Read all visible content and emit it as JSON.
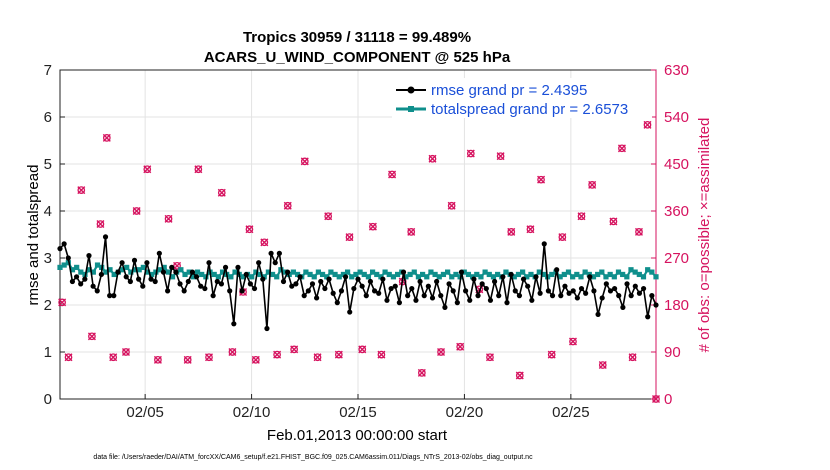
{
  "chart_data": {
    "type": "line",
    "title": "Tropics 30959 / 31118 = 99.489%",
    "subtitle": "ACARS_U_WIND_COMPONENT @ 525 hPa",
    "xlabel": "Feb.01,2013 00:00:00 start",
    "ylabel_left": "rmse and totalspread",
    "ylabel_right": "# of obs: o=possible; ×=assimilated",
    "xlim": [
      1,
      29
    ],
    "ylim_left": [
      0,
      7
    ],
    "ylim_right": [
      0,
      630
    ],
    "x_ticks": [
      5,
      10,
      15,
      20,
      25
    ],
    "x_tick_labels": [
      "02/05",
      "02/10",
      "02/15",
      "02/20",
      "02/25"
    ],
    "y_ticks_left": [
      "0",
      "1",
      "2",
      "3",
      "4",
      "5",
      "6",
      "7"
    ],
    "y_ticks_right": [
      "0",
      "90",
      "180",
      "270",
      "360",
      "450",
      "540",
      "630"
    ],
    "grid": true,
    "legend_position": "top-right",
    "colors": {
      "rmse": "#000000",
      "totalspread": "#0f8f8c",
      "obs": "#d6135f",
      "legend_text": "#1a4fd8"
    },
    "series": [
      {
        "name": "rmse grand pr = 2.4395",
        "axis": "left",
        "values": [
          3.2,
          3.3,
          3.0,
          2.5,
          2.6,
          2.45,
          2.55,
          3.05,
          2.4,
          2.3,
          2.65,
          3.45,
          2.2,
          2.2,
          2.7,
          2.9,
          2.6,
          2.5,
          2.95,
          2.55,
          2.4,
          2.9,
          2.55,
          2.5,
          3.1,
          2.7,
          2.3,
          2.8,
          2.7,
          2.45,
          2.3,
          2.5,
          2.7,
          2.6,
          2.4,
          2.35,
          2.9,
          2.2,
          2.5,
          2.45,
          2.8,
          2.3,
          1.6,
          2.8,
          2.3,
          2.65,
          2.45,
          2.35,
          2.9,
          2.55,
          1.5,
          3.1,
          2.9,
          3.1,
          2.5,
          2.7,
          2.4,
          2.45,
          2.6,
          2.2,
          2.3,
          2.45,
          2.15,
          2.5,
          2.35,
          2.55,
          2.25,
          2.05,
          2.3,
          2.6,
          1.85,
          2.35,
          2.55,
          2.4,
          2.2,
          2.5,
          2.3,
          2.25,
          2.55,
          2.1,
          2.35,
          2.4,
          2.05,
          2.7,
          2.2,
          2.35,
          2.1,
          2.5,
          2.2,
          2.4,
          2.15,
          2.5,
          2.2,
          1.95,
          2.45,
          2.3,
          2.05,
          2.7,
          2.3,
          2.1,
          2.55,
          2.2,
          2.45,
          2.35,
          2.1,
          2.5,
          2.2,
          2.6,
          2.05,
          2.65,
          2.3,
          2.2,
          2.55,
          2.4,
          2.1,
          2.6,
          2.25,
          3.3,
          2.3,
          2.2,
          2.75,
          2.2,
          2.4,
          2.25,
          2.3,
          2.15,
          2.35,
          2.25,
          2.6,
          2.3,
          1.8,
          2.15,
          2.45,
          2.3,
          2.35,
          2.2,
          1.95,
          2.45,
          2.2,
          2.4,
          2.25,
          2.35,
          1.75,
          2.2,
          2.0
        ]
      },
      {
        "name": "totalspread grand pr = 2.6573",
        "axis": "left",
        "values": [
          2.8,
          2.85,
          2.9,
          2.75,
          2.8,
          2.7,
          2.65,
          2.75,
          2.7,
          2.85,
          2.8,
          2.7,
          2.75,
          2.65,
          2.7,
          2.75,
          2.8,
          2.7,
          2.75,
          2.75,
          2.8,
          2.7,
          2.65,
          2.7,
          2.75,
          2.8,
          2.7,
          2.6,
          2.7,
          2.75,
          2.65,
          2.7,
          2.6,
          2.7,
          2.65,
          2.6,
          2.7,
          2.65,
          2.6,
          2.7,
          2.65,
          2.6,
          2.7,
          2.65,
          2.6,
          2.65,
          2.6,
          2.7,
          2.65,
          2.6,
          2.7,
          2.65,
          2.6,
          2.75,
          2.7,
          2.65,
          2.7,
          2.65,
          2.6,
          2.7,
          2.65,
          2.6,
          2.7,
          2.65,
          2.6,
          2.7,
          2.65,
          2.6,
          2.65,
          2.7,
          2.6,
          2.65,
          2.7,
          2.65,
          2.6,
          2.7,
          2.65,
          2.6,
          2.7,
          2.65,
          2.6,
          2.65,
          2.7,
          2.6,
          2.65,
          2.7,
          2.6,
          2.65,
          2.6,
          2.7,
          2.65,
          2.6,
          2.65,
          2.7,
          2.6,
          2.65,
          2.6,
          2.7,
          2.65,
          2.6,
          2.65,
          2.6,
          2.7,
          2.65,
          2.6,
          2.65,
          2.6,
          2.7,
          2.65,
          2.6,
          2.65,
          2.7,
          2.6,
          2.65,
          2.6,
          2.7,
          2.65,
          2.6,
          2.65,
          2.7,
          2.6,
          2.65,
          2.7,
          2.6,
          2.65,
          2.6,
          2.7,
          2.65,
          2.6,
          2.65,
          2.7,
          2.6,
          2.65,
          2.6,
          2.7,
          2.65,
          2.6,
          2.75,
          2.7,
          2.65,
          2.6,
          2.75,
          2.7,
          2.6
        ]
      },
      {
        "name": "obs",
        "axis": "right",
        "markers": "o=possible, x=assimilated",
        "points": [
          [
            1.1,
            185
          ],
          [
            1.4,
            80
          ],
          [
            2.0,
            400
          ],
          [
            2.5,
            120
          ],
          [
            2.9,
            335
          ],
          [
            3.2,
            500
          ],
          [
            3.5,
            80
          ],
          [
            4.1,
            90
          ],
          [
            4.6,
            360
          ],
          [
            5.1,
            440
          ],
          [
            5.6,
            75
          ],
          [
            6.1,
            345
          ],
          [
            6.5,
            255
          ],
          [
            7.0,
            75
          ],
          [
            7.5,
            440
          ],
          [
            8.0,
            80
          ],
          [
            8.6,
            395
          ],
          [
            9.1,
            90
          ],
          [
            9.6,
            205
          ],
          [
            9.9,
            325
          ],
          [
            10.2,
            75
          ],
          [
            10.6,
            300
          ],
          [
            11.2,
            85
          ],
          [
            11.7,
            370
          ],
          [
            12.0,
            95
          ],
          [
            12.5,
            455
          ],
          [
            13.1,
            80
          ],
          [
            13.6,
            350
          ],
          [
            14.1,
            85
          ],
          [
            14.6,
            310
          ],
          [
            15.2,
            95
          ],
          [
            15.7,
            330
          ],
          [
            16.1,
            85
          ],
          [
            16.6,
            430
          ],
          [
            17.1,
            225
          ],
          [
            17.5,
            320
          ],
          [
            18.0,
            50
          ],
          [
            18.5,
            460
          ],
          [
            18.9,
            90
          ],
          [
            19.4,
            370
          ],
          [
            19.8,
            100
          ],
          [
            20.3,
            470
          ],
          [
            20.7,
            210
          ],
          [
            21.2,
            80
          ],
          [
            21.7,
            465
          ],
          [
            22.2,
            320
          ],
          [
            22.6,
            45
          ],
          [
            23.1,
            325
          ],
          [
            23.6,
            420
          ],
          [
            24.1,
            85
          ],
          [
            24.6,
            310
          ],
          [
            25.1,
            110
          ],
          [
            25.5,
            350
          ],
          [
            26.0,
            410
          ],
          [
            26.5,
            65
          ],
          [
            27.0,
            340
          ],
          [
            27.4,
            480
          ],
          [
            27.9,
            80
          ],
          [
            28.2,
            320
          ],
          [
            28.6,
            525
          ],
          [
            29.0,
            0
          ]
        ]
      }
    ]
  },
  "footer": "data file: /Users/raeder/DAI/ATM_forcXX/CAM6_setup/f.e21.FHIST_BGC.f09_025.CAM6assim.011/Diags_NTrS_2013-02/obs_diag_output.nc"
}
